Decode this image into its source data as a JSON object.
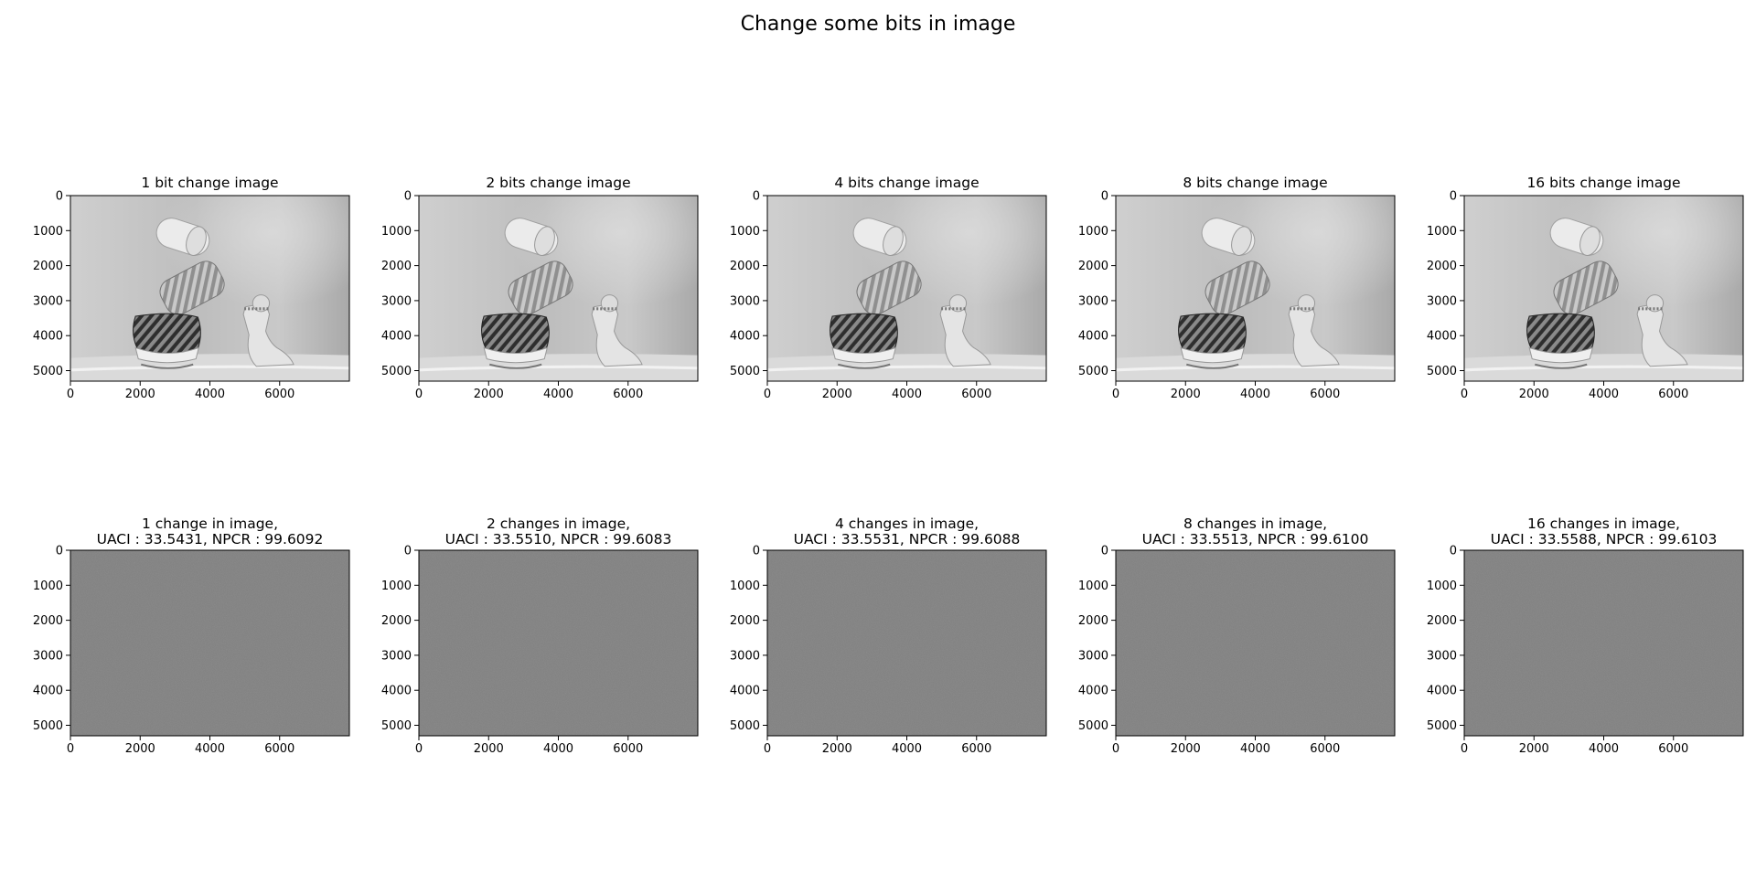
{
  "figure": {
    "title": "Change some bits in image"
  },
  "chart_data": [
    {
      "type": "heatmap",
      "panel": "image",
      "title": "1 bit change image",
      "xlim": [
        0,
        8000
      ],
      "ylim": [
        5300,
        0
      ],
      "xticks": [
        0,
        2000,
        4000,
        6000
      ],
      "yticks": [
        0,
        1000,
        2000,
        3000,
        4000,
        5000
      ]
    },
    {
      "type": "heatmap",
      "panel": "image",
      "title": "2 bits change image",
      "xlim": [
        0,
        8000
      ],
      "ylim": [
        5300,
        0
      ],
      "xticks": [
        0,
        2000,
        4000,
        6000
      ],
      "yticks": [
        0,
        1000,
        2000,
        3000,
        4000,
        5000
      ]
    },
    {
      "type": "heatmap",
      "panel": "image",
      "title": "4 bits change image",
      "xlim": [
        0,
        8000
      ],
      "ylim": [
        5300,
        0
      ],
      "xticks": [
        0,
        2000,
        4000,
        6000
      ],
      "yticks": [
        0,
        1000,
        2000,
        3000,
        4000,
        5000
      ]
    },
    {
      "type": "heatmap",
      "panel": "image",
      "title": "8 bits change image",
      "xlim": [
        0,
        8000
      ],
      "ylim": [
        5300,
        0
      ],
      "xticks": [
        0,
        2000,
        4000,
        6000
      ],
      "yticks": [
        0,
        1000,
        2000,
        3000,
        4000,
        5000
      ]
    },
    {
      "type": "heatmap",
      "panel": "image",
      "title": "16 bits change image",
      "xlim": [
        0,
        8000
      ],
      "ylim": [
        5300,
        0
      ],
      "xticks": [
        0,
        2000,
        4000,
        6000
      ],
      "yticks": [
        0,
        1000,
        2000,
        3000,
        4000,
        5000
      ]
    },
    {
      "type": "heatmap",
      "panel": "noise",
      "title": "1 change in image,",
      "subtitle": "UACI : 33.5431, NPCR : 99.6092",
      "xlim": [
        0,
        8000
      ],
      "ylim": [
        5300,
        0
      ],
      "xticks": [
        0,
        2000,
        4000,
        6000
      ],
      "yticks": [
        0,
        1000,
        2000,
        3000,
        4000,
        5000
      ]
    },
    {
      "type": "heatmap",
      "panel": "noise",
      "title": "2 changes in image,",
      "subtitle": "UACI : 33.5510, NPCR : 99.6083",
      "xlim": [
        0,
        8000
      ],
      "ylim": [
        5300,
        0
      ],
      "xticks": [
        0,
        2000,
        4000,
        6000
      ],
      "yticks": [
        0,
        1000,
        2000,
        3000,
        4000,
        5000
      ]
    },
    {
      "type": "heatmap",
      "panel": "noise",
      "title": "4 changes in image,",
      "subtitle": "UACI : 33.5531, NPCR : 99.6088",
      "xlim": [
        0,
        8000
      ],
      "ylim": [
        5300,
        0
      ],
      "xticks": [
        0,
        2000,
        4000,
        6000
      ],
      "yticks": [
        0,
        1000,
        2000,
        3000,
        4000,
        5000
      ]
    },
    {
      "type": "heatmap",
      "panel": "noise",
      "title": "8 changes in image,",
      "subtitle": "UACI : 33.5513, NPCR : 99.6100",
      "xlim": [
        0,
        8000
      ],
      "ylim": [
        5300,
        0
      ],
      "xticks": [
        0,
        2000,
        4000,
        6000
      ],
      "yticks": [
        0,
        1000,
        2000,
        3000,
        4000,
        5000
      ]
    },
    {
      "type": "heatmap",
      "panel": "noise",
      "title": "16 changes in image,",
      "subtitle": "UACI : 33.5588, NPCR : 99.6103",
      "xlim": [
        0,
        8000
      ],
      "ylim": [
        5300,
        0
      ],
      "xticks": [
        0,
        2000,
        4000,
        6000
      ],
      "yticks": [
        0,
        1000,
        2000,
        3000,
        4000,
        5000
      ]
    }
  ],
  "colors": {
    "axis": "#000000",
    "noise_gray": "#808080",
    "photo_background": "#c4c4c4"
  }
}
